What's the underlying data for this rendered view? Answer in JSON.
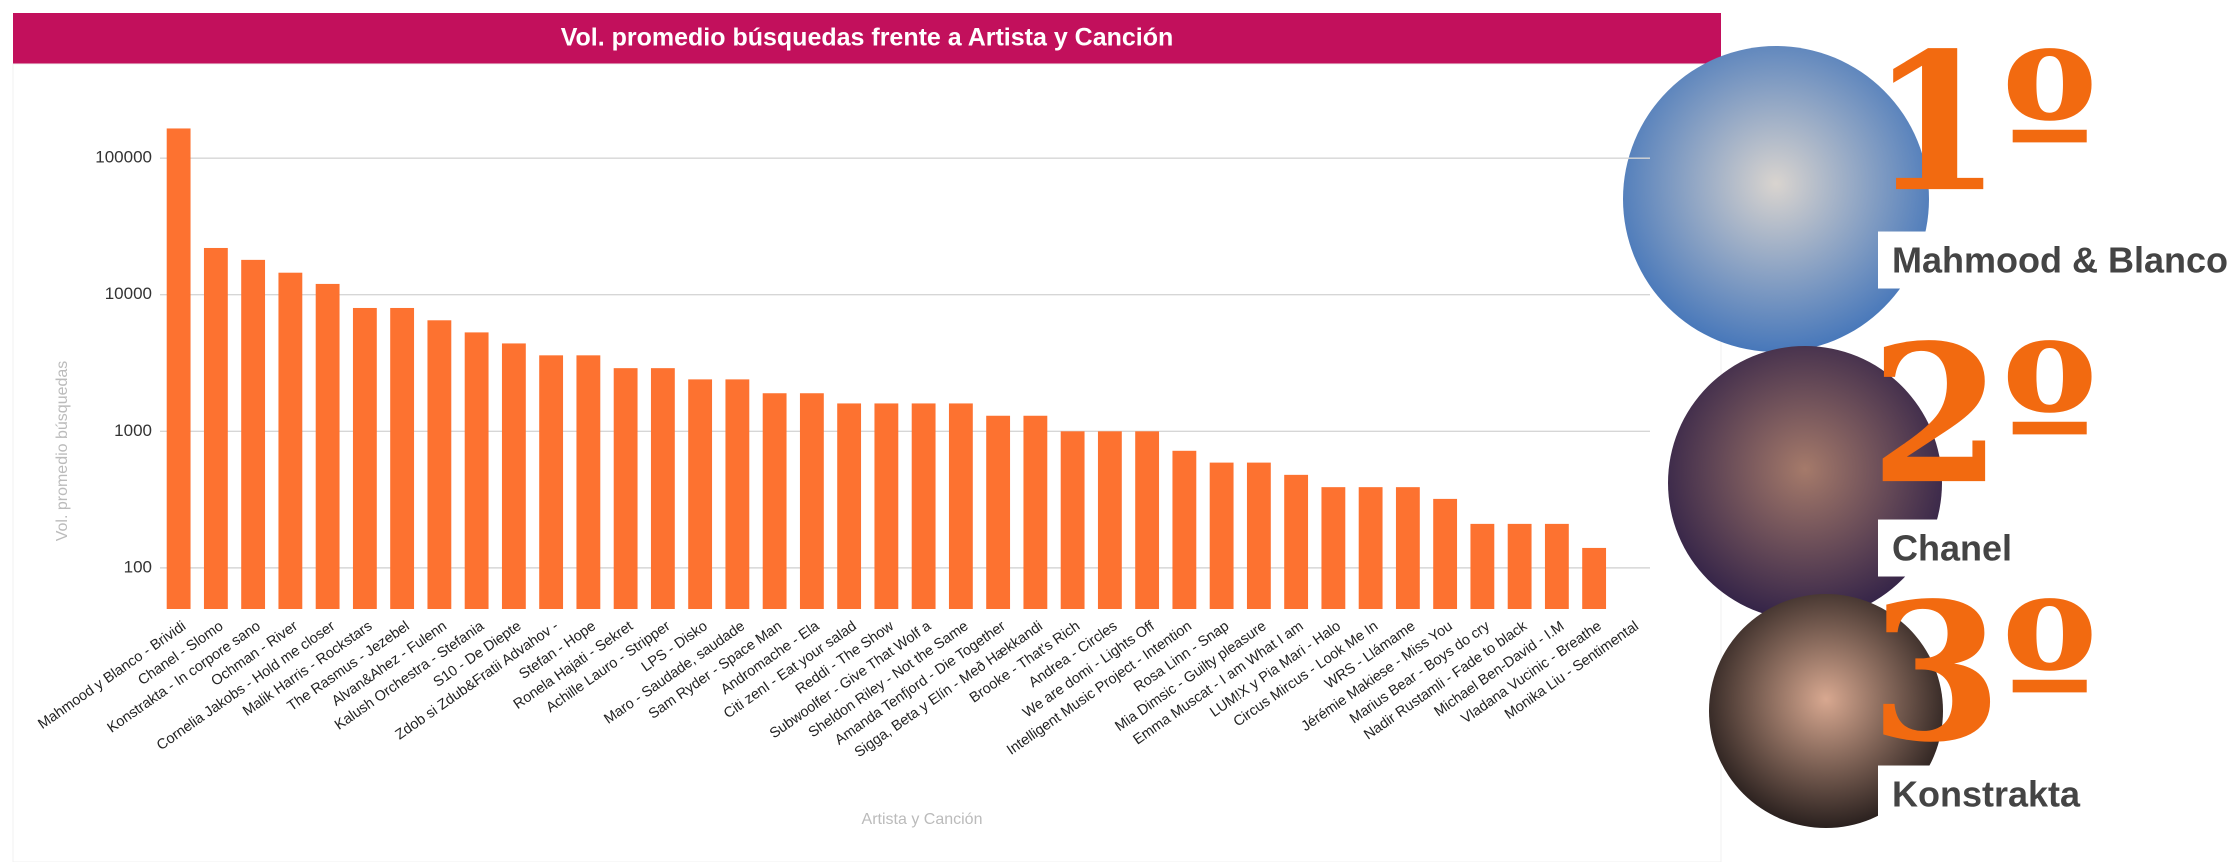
{
  "chart_data": {
    "type": "bar",
    "title": "Vol. promedio búsquedas frente a Artista y Canción",
    "x_label": "Artista y Canción",
    "y_label": "Vol. promedio búsquedas",
    "log_scale": true,
    "grid": true,
    "color": "#fd7230",
    "ylim": [
      50,
      300000
    ],
    "yticks": [
      100,
      1000,
      10000,
      100000
    ],
    "categories": [
      "Mahmood y Blanco - Brividi",
      "Chanel - Slomo",
      "Konstrakta - In corpore sano",
      "Ochman - River",
      "Cornelia Jakobs - Hold me closer",
      "Malik Harris - Rockstars",
      "The Rasmus - Jezebel",
      "Alvan&Ahez - Fulenn",
      "Kalush Orchestra - Stefania",
      "S10 - De Diepte",
      "Zdob si Zdub&Fratii Advahov -",
      "Stefan - Hope",
      "Ronela Hajati - Sekret",
      "Achille Lauro - Stripper",
      "LPS - Disko",
      "Maro - Saudade, saudade",
      "Sam Ryder - Space Man",
      "Andromache - Ela",
      "Citi zenI - Eat your salad",
      "Reddi - The Show",
      "Subwoolfer - Give That Wolf a",
      "Sheldon Riley - Not the Same",
      "Amanda Tenfjord - Die Together",
      "Sigga, Beta y Elín - Með Hækkandi",
      "Brooke - That's Rich",
      "Andrea - Circles",
      "We are domi - Lights Off",
      "Intelligent Music Project - Intention",
      "Rosa Linn - Snap",
      "Mia Dimsic - Guilty pleasure",
      "Emma Muscat - I am What I am",
      "LUM!X y Pia Mari - Halo",
      "Circus Mircus - Look Me In",
      "WRS - Llámame",
      "Jérémie Makiese - Miss You",
      "Marius Bear - Boys do cry",
      "Nadir Rustamli - Fade to black",
      "Michael Ben-David - I.M",
      "Vladana Vucinic - Breathe",
      "Monika Liu - Sentimental"
    ],
    "values": [
      165000,
      22000,
      18000,
      14500,
      12000,
      8000,
      8000,
      6500,
      5300,
      4400,
      3600,
      3600,
      2900,
      2900,
      2400,
      2400,
      1900,
      1900,
      1600,
      1600,
      1600,
      1600,
      1300,
      1300,
      1000,
      1000,
      1000,
      720,
      590,
      590,
      480,
      390,
      390,
      390,
      320,
      210,
      210,
      210,
      140,
      null
    ]
  },
  "podium": [
    {
      "rank": "1º",
      "name": "Mahmood & Blanco"
    },
    {
      "rank": "2º",
      "name": "Chanel"
    },
    {
      "rank": "3º",
      "name": "Konstrakta"
    }
  ]
}
